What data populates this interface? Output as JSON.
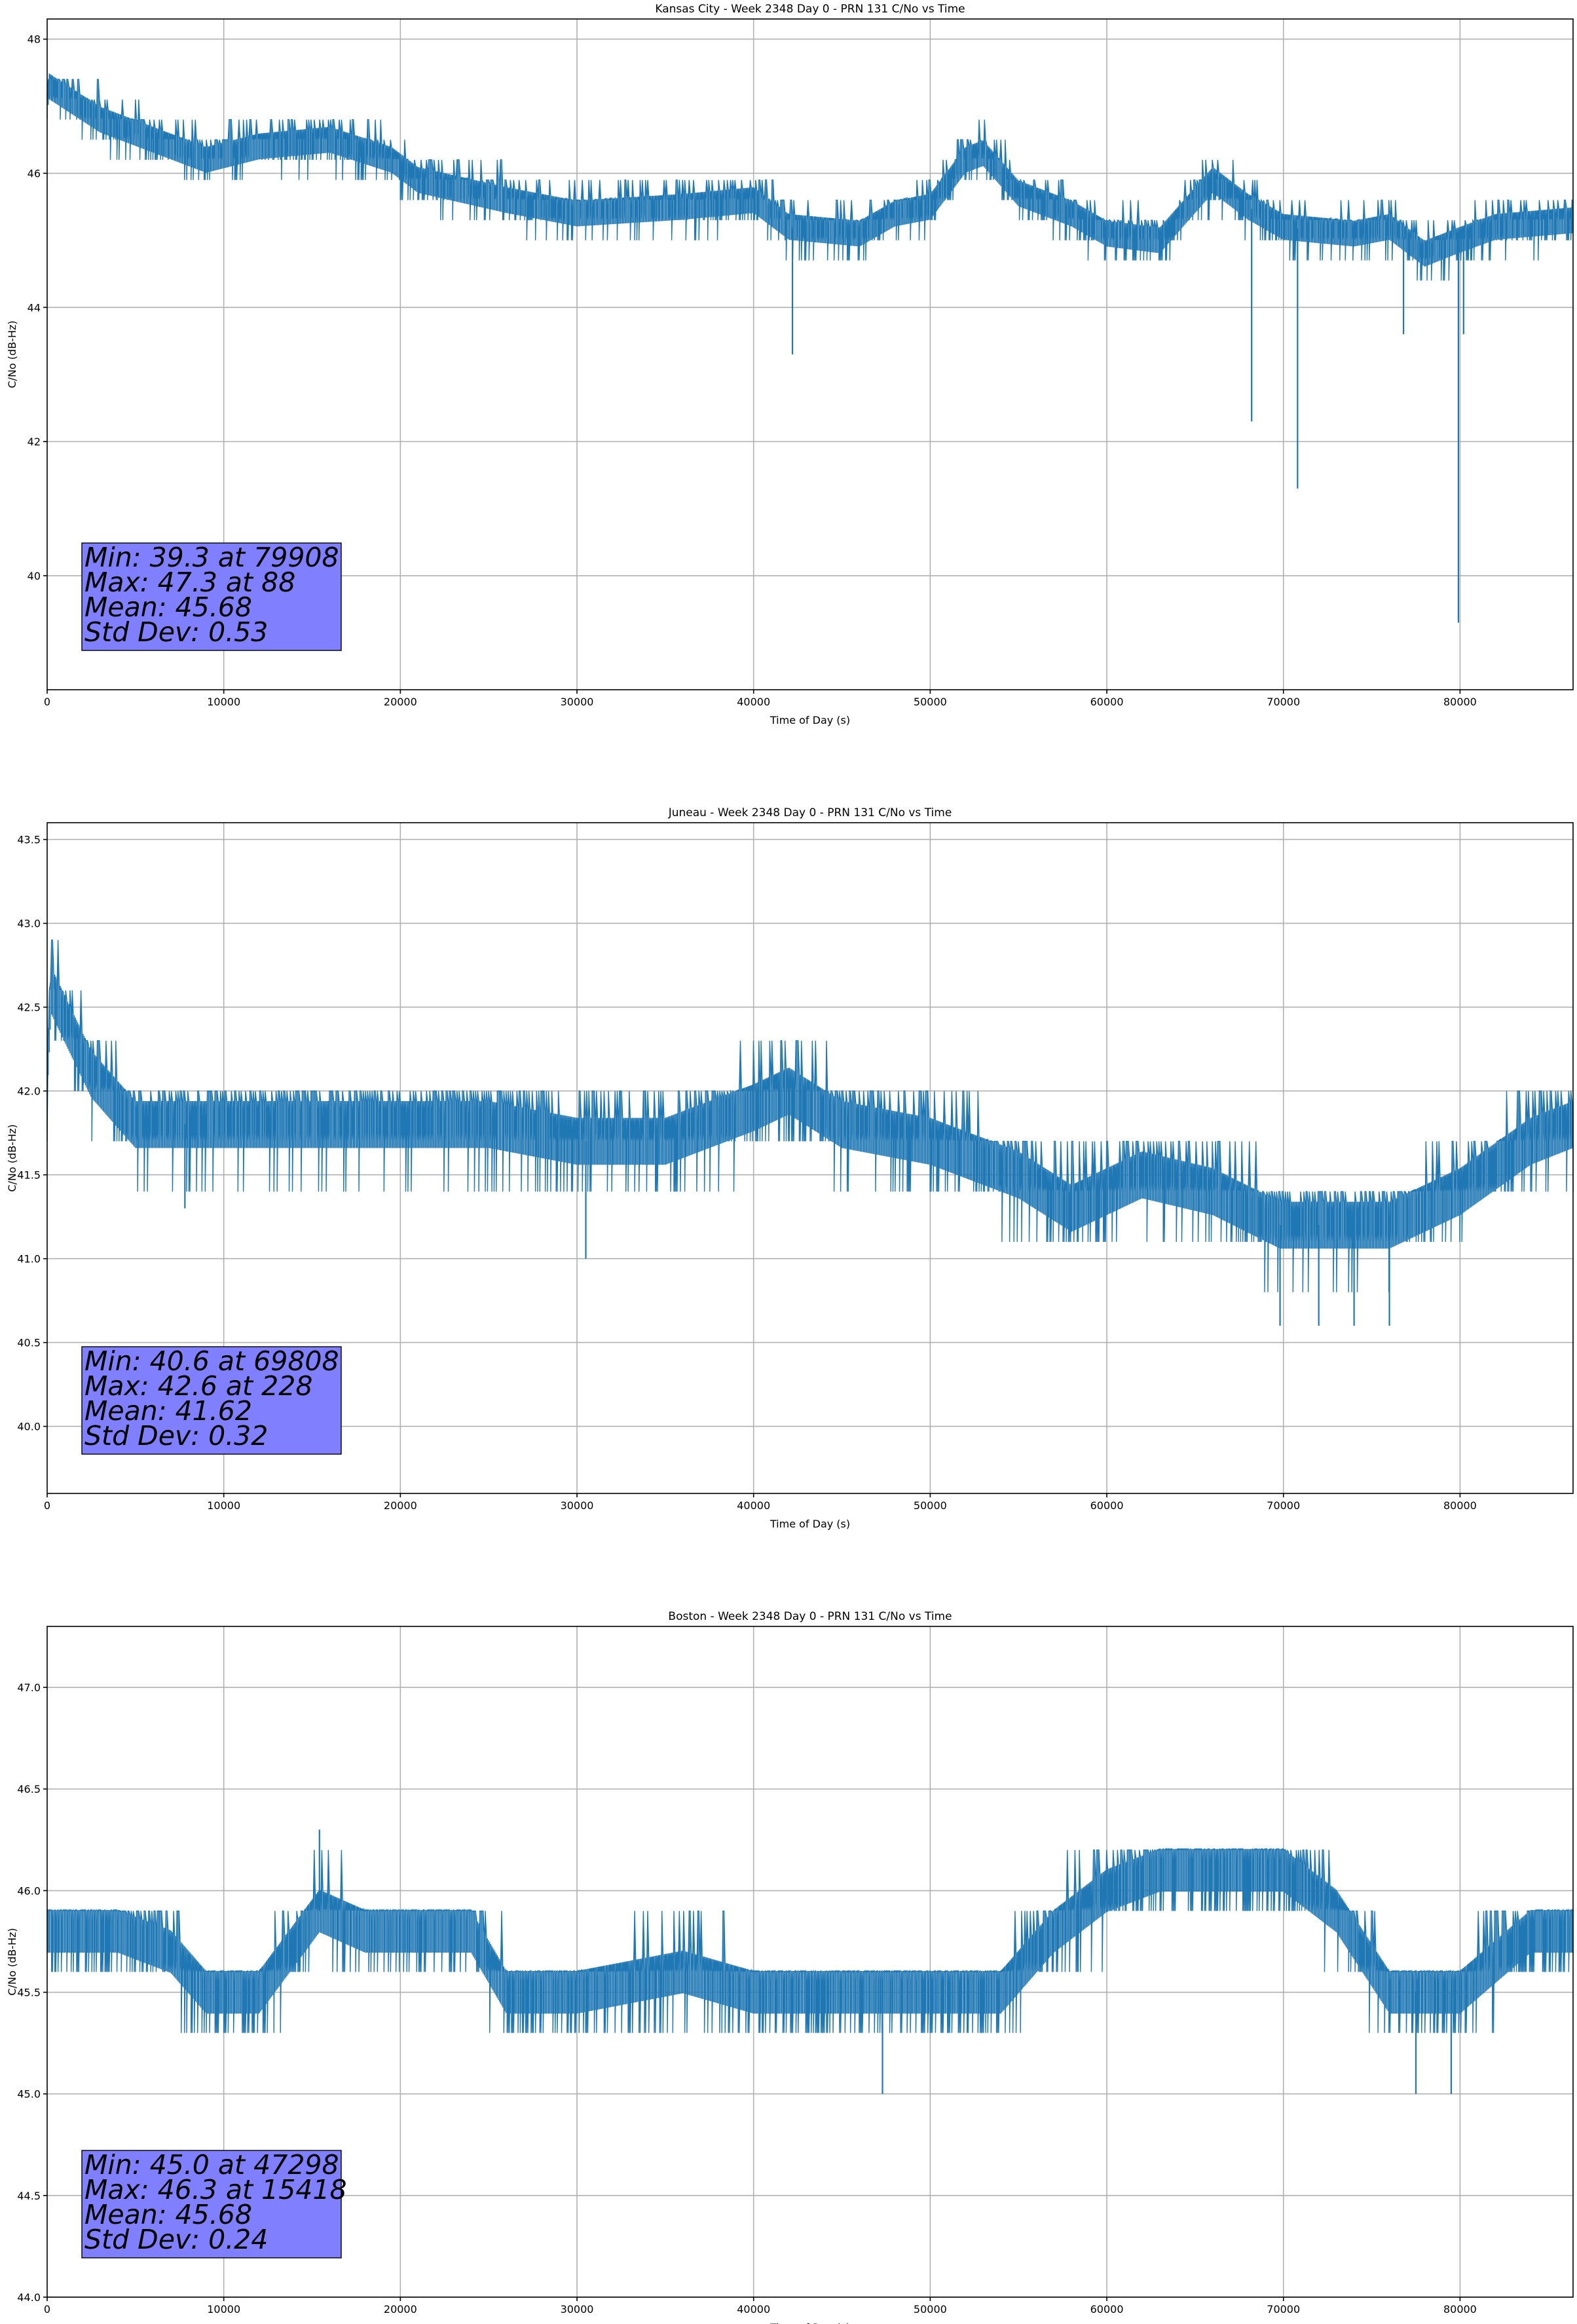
{
  "figure": {
    "background": "#ffffff"
  },
  "chart_data": [
    {
      "type": "line",
      "title": "Kansas City - Week 2348 Day 0 - PRN 131 C/No vs Time",
      "xlabel": "Time of Day (s)",
      "ylabel": "C/No (dB-Hz)",
      "xlim": [
        0,
        86400
      ],
      "ylim": [
        38.3,
        48.3
      ],
      "xticks": [
        0,
        10000,
        20000,
        30000,
        40000,
        50000,
        60000,
        70000,
        80000
      ],
      "yticks": [
        40,
        42,
        44,
        46,
        48
      ],
      "ytick_labels": [
        "40",
        "42",
        "44",
        "46",
        "48"
      ],
      "grid": true,
      "color": "#1f77b4",
      "series": [
        {
          "name": "Kansas City PRN 131",
          "x": [
            0,
            88,
            3000,
            6000,
            9000,
            12000,
            16000,
            19500,
            21000,
            26000,
            30000,
            36000,
            40000,
            42000,
            46000,
            48000,
            50000,
            52000,
            53000,
            54000,
            55000,
            58000,
            60000,
            63000,
            66000,
            68000,
            70000,
            74000,
            76000,
            78000,
            79908,
            82000,
            86400
          ],
          "y": [
            47.0,
            47.3,
            46.8,
            46.5,
            46.2,
            46.4,
            46.5,
            46.2,
            45.9,
            45.6,
            45.4,
            45.5,
            45.6,
            45.2,
            45.1,
            45.4,
            45.5,
            46.2,
            46.3,
            46.0,
            45.7,
            45.4,
            45.1,
            45.0,
            45.9,
            45.5,
            45.2,
            45.1,
            45.2,
            44.8,
            45.0,
            45.2,
            45.3
          ],
          "spikes": [
            [
              42200,
              43.3
            ],
            [
              68200,
              42.3
            ],
            [
              70800,
              41.3
            ],
            [
              76800,
              43.6
            ],
            [
              79908,
              39.3
            ],
            [
              80200,
              43.6
            ]
          ],
          "band": 0.55
        }
      ],
      "stats": {
        "lines": [
          "Min: 39.3 at 79908",
          "Max: 47.3 at 88",
          "Mean: 45.68",
          "Std Dev: 0.53"
        ],
        "box_color": "#8080ff"
      }
    },
    {
      "type": "line",
      "title": "Juneau - Week 2348 Day 0 - PRN 131 C/No vs Time",
      "xlabel": "Time of Day (s)",
      "ylabel": "C/No (dB-Hz)",
      "xlim": [
        0,
        86400
      ],
      "ylim": [
        39.6,
        43.6
      ],
      "xticks": [
        0,
        10000,
        20000,
        30000,
        40000,
        50000,
        60000,
        70000,
        80000
      ],
      "yticks": [
        40.0,
        40.5,
        41.0,
        41.5,
        42.0,
        42.5,
        43.0,
        43.5
      ],
      "ytick_labels": [
        "40.0",
        "40.5",
        "41.0",
        "41.5",
        "42.0",
        "42.5",
        "43.0",
        "43.5"
      ],
      "grid": true,
      "color": "#1f77b4",
      "series": [
        {
          "name": "Juneau PRN 131",
          "x": [
            0,
            228,
            2500,
            5000,
            10000,
            15000,
            20000,
            25000,
            30000,
            35000,
            40000,
            42000,
            45000,
            50000,
            55000,
            58000,
            62000,
            66000,
            69808,
            72000,
            76000,
            80000,
            84000,
            86400
          ],
          "y": [
            42.1,
            42.6,
            42.1,
            41.8,
            41.8,
            41.8,
            41.8,
            41.8,
            41.7,
            41.7,
            41.9,
            42.0,
            41.8,
            41.7,
            41.5,
            41.3,
            41.5,
            41.4,
            41.2,
            41.2,
            41.2,
            41.4,
            41.7,
            41.8
          ],
          "spikes": [
            [
              7800,
              41.3
            ],
            [
              30500,
              41.0
            ],
            [
              69808,
              40.6
            ],
            [
              72000,
              40.6
            ],
            [
              74000,
              40.6
            ],
            [
              76000,
              40.6
            ]
          ],
          "band": 0.4
        }
      ],
      "stats": {
        "lines": [
          "Min: 40.6 at 69808",
          "Max: 42.6 at 228",
          "Mean: 41.62",
          "Std Dev: 0.32"
        ],
        "box_color": "#8080ff"
      }
    },
    {
      "type": "line",
      "title": "Boston - Week 2348 Day 0 - PRN 131 C/No vs Time",
      "xlabel": "Time of Day (s)",
      "ylabel": "C/No (dB-Hz)",
      "xlim": [
        0,
        86400
      ],
      "ylim": [
        44.0,
        47.3
      ],
      "xticks": [
        0,
        10000,
        20000,
        30000,
        40000,
        50000,
        60000,
        70000,
        80000
      ],
      "yticks": [
        44.0,
        44.5,
        45.0,
        45.5,
        46.0,
        46.5,
        47.0
      ],
      "ytick_labels": [
        "44.0",
        "44.5",
        "45.0",
        "45.5",
        "46.0",
        "46.5",
        "47.0"
      ],
      "grid": true,
      "color": "#1f77b4",
      "series": [
        {
          "name": "Boston PRN 131",
          "x": [
            0,
            4000,
            7000,
            9000,
            12000,
            15418,
            18000,
            24000,
            26000,
            30000,
            36000,
            40000,
            44000,
            47298,
            50000,
            54000,
            57000,
            60000,
            63000,
            66000,
            70000,
            73000,
            76000,
            80000,
            84000,
            86400
          ],
          "y": [
            45.8,
            45.8,
            45.7,
            45.5,
            45.5,
            45.9,
            45.8,
            45.8,
            45.5,
            45.5,
            45.6,
            45.5,
            45.5,
            45.5,
            45.5,
            45.5,
            45.8,
            46.0,
            46.1,
            46.1,
            46.1,
            45.9,
            45.5,
            45.5,
            45.8,
            45.8
          ],
          "spikes": [
            [
              15418,
              46.3
            ],
            [
              47298,
              45.0
            ],
            [
              77500,
              45.0
            ],
            [
              79500,
              45.0
            ]
          ],
          "band": 0.3
        }
      ],
      "stats": {
        "lines": [
          "Min: 45.0 at 47298",
          "Max: 46.3 at 15418",
          "Mean: 45.68",
          "Std Dev: 0.24"
        ],
        "box_color": "#8080ff"
      }
    }
  ]
}
